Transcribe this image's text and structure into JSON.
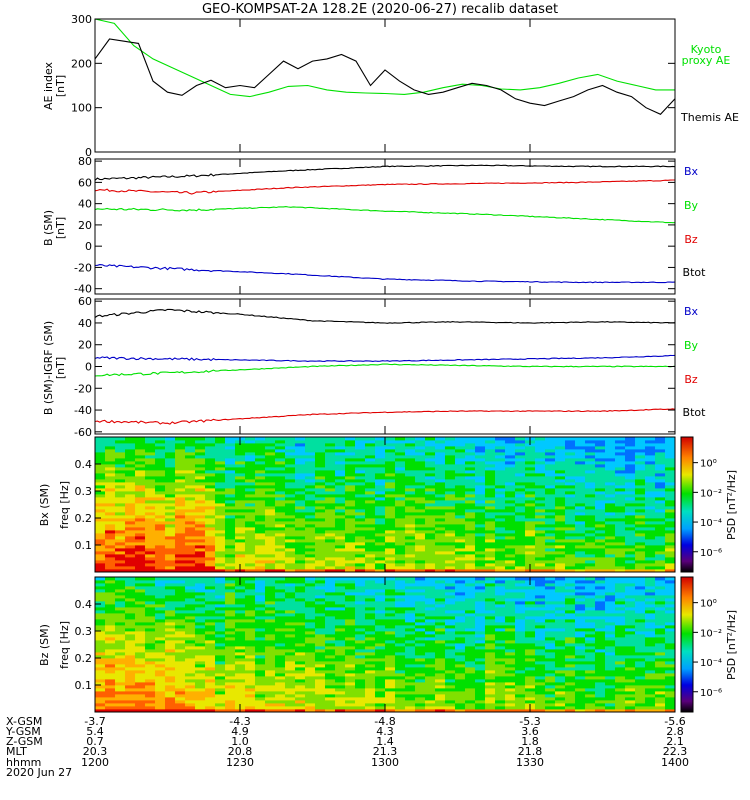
{
  "title": "GEO-KOMPSAT-2A 128.2E (2020-06-27) recalib dataset",
  "panels": {
    "ae": {
      "ylabel_line1": "AE index",
      "ylabel_line2": "[nT]",
      "yticks": [
        "0",
        "100",
        "200",
        "300"
      ],
      "legend": [
        {
          "text": "Kyoto",
          "color": "#00e000"
        },
        {
          "text": "proxy AE",
          "color": "#00e000"
        },
        {
          "text": "Themis AE",
          "color": "#000000"
        }
      ]
    },
    "b": {
      "ylabel_line1": "B (SM)",
      "ylabel_line2": "[nT]",
      "ylabel_sub": "T",
      "yticks": [
        "-40",
        "-20",
        "0",
        "20",
        "40",
        "60",
        "80"
      ],
      "legend": [
        {
          "text": "Bx",
          "color": "#0000c8"
        },
        {
          "text": "By",
          "color": "#00e000"
        },
        {
          "text": "Bz",
          "color": "#e00000"
        },
        {
          "text": "Btot",
          "color": "#000000"
        }
      ]
    },
    "bigrf": {
      "ylabel_line1": "B (SM)-IGRF (SM)",
      "ylabel_line2": "[nT]",
      "ylabel_sub": "T",
      "yticks": [
        "-60",
        "-40",
        "-20",
        "0",
        "20",
        "40",
        "60"
      ],
      "legend": [
        {
          "text": "Bx",
          "color": "#0000c8"
        },
        {
          "text": "By",
          "color": "#00e000"
        },
        {
          "text": "Bz",
          "color": "#e00000"
        },
        {
          "text": "Btot",
          "color": "#000000"
        }
      ]
    },
    "specbx": {
      "ylabel_line1": "Bx (SM)",
      "ylabel_line2": "freq [Hz]",
      "yticks": [
        "0.1",
        "0.2",
        "0.3",
        "0.4"
      ]
    },
    "specbz": {
      "ylabel_line1": "Bz (SM)",
      "ylabel_line2": "freq [Hz]",
      "yticks": [
        "0.1",
        "0.2",
        "0.3",
        "0.4"
      ]
    },
    "colorbar": {
      "label": "PSD [nT²/Hz]",
      "ticks": [
        "10⁰",
        "10⁻²",
        "10⁻⁴",
        "10⁻⁶"
      ]
    }
  },
  "ephemeris": {
    "labels": [
      "X-GSM",
      "Y-GSM",
      "Z-GSM",
      "MLT",
      "hhmm"
    ],
    "date": "2020 Jun 27",
    "columns": [
      [
        "-3.7",
        "5.4",
        "0.7",
        "20.3",
        "1200"
      ],
      [
        "-4.3",
        "4.9",
        "1.0",
        "20.8",
        "1230"
      ],
      [
        "-4.8",
        "4.3",
        "1.4",
        "21.3",
        "1300"
      ],
      [
        "-5.3",
        "3.6",
        "1.8",
        "21.8",
        "1330"
      ],
      [
        "-5.6",
        "2.8",
        "2.1",
        "22.3",
        "1400"
      ]
    ]
  },
  "chart_data": [
    {
      "type": "line",
      "ylim": [
        0,
        300
      ],
      "xlim": [
        0,
        120
      ],
      "series": [
        {
          "name": "Kyoto proxy AE",
          "color": "#00e000",
          "x": [
            0,
            4,
            8,
            12,
            16,
            20,
            24,
            28,
            32,
            36,
            40,
            44,
            48,
            52,
            56,
            60,
            64,
            68,
            72,
            76,
            80,
            84,
            88,
            92,
            96,
            100,
            104,
            108,
            112,
            116,
            120
          ],
          "y": [
            300,
            290,
            240,
            210,
            190,
            170,
            150,
            130,
            125,
            135,
            148,
            150,
            140,
            135,
            133,
            132,
            130,
            135,
            145,
            153,
            150,
            142,
            140,
            145,
            155,
            167,
            175,
            160,
            150,
            140,
            140
          ]
        },
        {
          "name": "Themis AE",
          "color": "#000000",
          "x": [
            0,
            3,
            6,
            9,
            12,
            15,
            18,
            21,
            24,
            27,
            30,
            33,
            36,
            39,
            42,
            45,
            48,
            51,
            54,
            57,
            60,
            63,
            66,
            69,
            72,
            75,
            78,
            81,
            84,
            87,
            90,
            93,
            96,
            99,
            102,
            105,
            108,
            111,
            114,
            117,
            120
          ],
          "y": [
            210,
            255,
            250,
            245,
            160,
            135,
            128,
            150,
            162,
            145,
            150,
            145,
            175,
            205,
            188,
            205,
            210,
            220,
            205,
            150,
            185,
            160,
            140,
            130,
            135,
            145,
            155,
            150,
            140,
            120,
            110,
            105,
            115,
            125,
            140,
            150,
            135,
            125,
            100,
            85,
            120
          ]
        }
      ]
    },
    {
      "type": "line",
      "ylim": [
        -45,
        82
      ],
      "xlim": [
        0,
        120
      ],
      "series": [
        {
          "name": "Btot",
          "color": "#000000",
          "x": [
            0,
            20,
            40,
            60,
            80,
            100,
            120
          ],
          "y": [
            63,
            66,
            71,
            75,
            76,
            75,
            75
          ]
        },
        {
          "name": "Bz",
          "color": "#e00000",
          "x": [
            0,
            20,
            40,
            60,
            80,
            100,
            120
          ],
          "y": [
            53,
            50,
            55,
            58,
            59,
            60,
            62
          ]
        },
        {
          "name": "By",
          "color": "#00e000",
          "x": [
            0,
            20,
            40,
            60,
            80,
            100,
            120
          ],
          "y": [
            35,
            34,
            37,
            33,
            30,
            26,
            22
          ]
        },
        {
          "name": "Bx",
          "color": "#0000c8",
          "x": [
            0,
            20,
            40,
            60,
            80,
            100,
            120
          ],
          "y": [
            -18,
            -22,
            -26,
            -31,
            -33,
            -34,
            -34
          ]
        }
      ]
    },
    {
      "type": "line",
      "ylim": [
        -62,
        62
      ],
      "xlim": [
        0,
        120
      ],
      "series": [
        {
          "name": "Btot",
          "color": "#000000",
          "x": [
            0,
            15,
            30,
            45,
            60,
            75,
            90,
            105,
            120
          ],
          "y": [
            46,
            52,
            48,
            42,
            40,
            41,
            40,
            41,
            40
          ]
        },
        {
          "name": "Bx",
          "color": "#0000c8",
          "x": [
            0,
            15,
            30,
            45,
            60,
            75,
            90,
            105,
            120
          ],
          "y": [
            8,
            7,
            6,
            5,
            5,
            6,
            7,
            8,
            10
          ]
        },
        {
          "name": "By",
          "color": "#00e000",
          "x": [
            0,
            15,
            30,
            45,
            60,
            75,
            90,
            105,
            120
          ],
          "y": [
            -8,
            -6,
            -3,
            0,
            2,
            1,
            0,
            0,
            0
          ]
        },
        {
          "name": "Bz",
          "color": "#e00000",
          "x": [
            0,
            15,
            30,
            45,
            60,
            75,
            90,
            105,
            120
          ],
          "y": [
            -50,
            -52,
            -48,
            -44,
            -42,
            -41,
            -41,
            -41,
            -39
          ]
        }
      ]
    },
    {
      "type": "heatmap",
      "xlim": [
        0,
        120
      ],
      "ylim": [
        0,
        0.5
      ],
      "colorbar_ticks": [
        "10⁰",
        "10⁻²",
        "10⁻⁴",
        "10⁻⁶"
      ]
    },
    {
      "type": "heatmap",
      "xlim": [
        0,
        120
      ],
      "ylim": [
        0,
        0.5
      ],
      "colorbar_ticks": [
        "10⁰",
        "10⁻²",
        "10⁻⁴",
        "10⁻⁶"
      ]
    }
  ]
}
